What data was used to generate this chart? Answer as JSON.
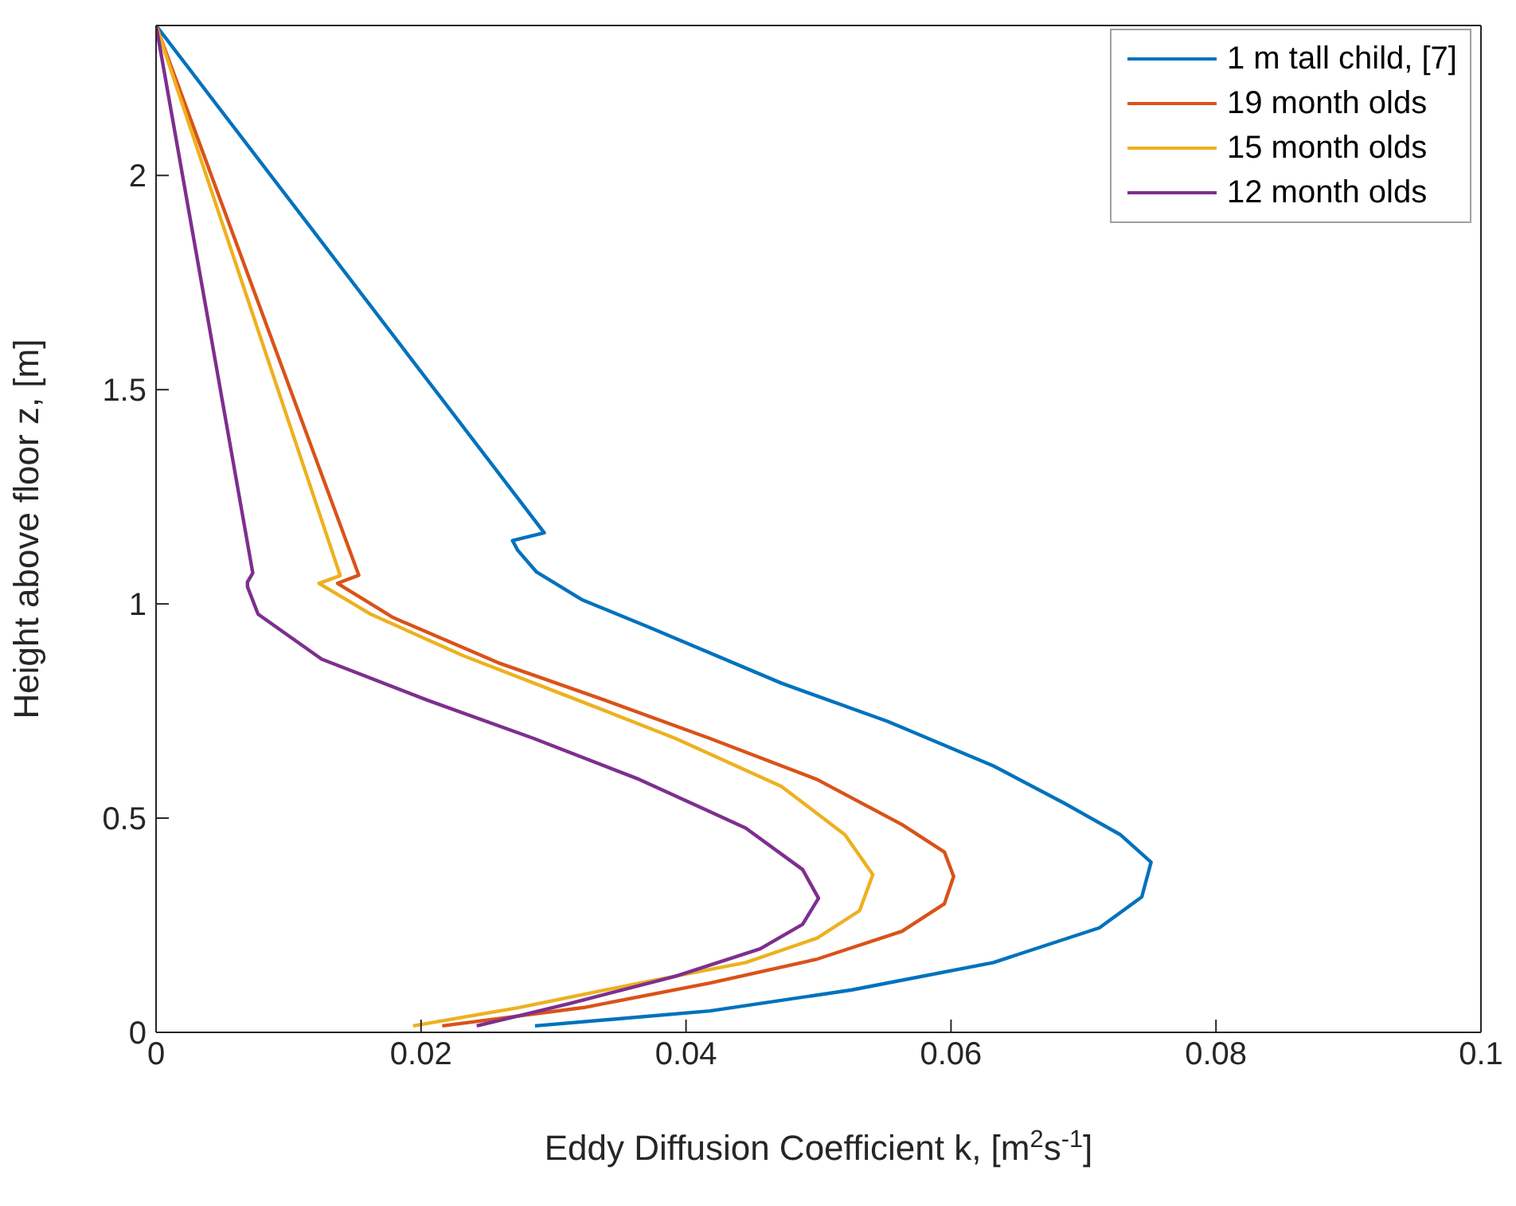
{
  "chart_data": {
    "type": "line",
    "xlabel": "Eddy Diffusion Coefficient k, [m$^{2}$s$^{-1}$]",
    "ylabel": "Height above floor z, [m]",
    "xlim": [
      0,
      0.1
    ],
    "xticks": [
      0,
      0.02,
      0.04,
      0.06,
      0.08,
      {
        "value": 0.1,
        "label": "0.1"
      }
    ],
    "ylim": [
      0,
      2.35
    ],
    "yticks": [
      0,
      0.5,
      1,
      1.5,
      2
    ],
    "grid": false,
    "legend": "top right",
    "marker": "none",
    "line_style": "solid",
    "series": [
      {
        "name": "1 m tall child, [7]",
        "color": "#0072bd",
        "x": [
          0,
          0.0293,
          0.0269,
          0.0273,
          0.0287,
          0.0322,
          0.0374,
          0.0472,
          0.0552,
          0.0632,
          0.0686,
          0.0728,
          0.0751,
          0.0744,
          0.0712,
          0.0632,
          0.0525,
          0.0418,
          0.0286
        ],
        "values": [
          2.35,
          1.166,
          1.148,
          1.125,
          1.075,
          1.009,
          0.943,
          0.815,
          0.726,
          0.622,
          0.534,
          0.461,
          0.397,
          0.316,
          0.244,
          0.163,
          0.099,
          0.05,
          0.015
        ]
      },
      {
        "name": "19 month olds",
        "color": "#d95319",
        "x": [
          0,
          0.0153,
          0.0137,
          0.0179,
          0.0258,
          0.0339,
          0.0418,
          0.0499,
          0.0563,
          0.0595,
          0.0602,
          0.0595,
          0.0563,
          0.0499,
          0.0418,
          0.0323,
          0.0216
        ],
        "values": [
          2.35,
          1.067,
          1.048,
          0.968,
          0.863,
          0.775,
          0.686,
          0.59,
          0.485,
          0.421,
          0.364,
          0.3,
          0.236,
          0.171,
          0.115,
          0.058,
          0.015
        ]
      },
      {
        "name": "15 month olds",
        "color": "#edb120",
        "x": [
          0,
          0.0139,
          0.0123,
          0.0162,
          0.0232,
          0.0312,
          0.0392,
          0.0472,
          0.052,
          0.0541,
          0.0531,
          0.0499,
          0.0445,
          0.0365,
          0.0274,
          0.0194
        ],
        "values": [
          2.35,
          1.066,
          1.048,
          0.976,
          0.879,
          0.783,
          0.686,
          0.574,
          0.461,
          0.368,
          0.284,
          0.22,
          0.163,
          0.115,
          0.058,
          0.015
        ]
      },
      {
        "name": "12 month olds",
        "color": "#7e2f8e",
        "x": [
          0,
          0.0073,
          0.0069,
          0.0069,
          0.0077,
          0.0125,
          0.0205,
          0.0285,
          0.0365,
          0.0445,
          0.0488,
          0.05,
          0.0488,
          0.0456,
          0.0392,
          0.0312,
          0.0242
        ],
        "values": [
          2.35,
          1.072,
          1.051,
          1.04,
          0.976,
          0.871,
          0.775,
          0.686,
          0.59,
          0.477,
          0.38,
          0.313,
          0.252,
          0.195,
          0.131,
          0.067,
          0.015
        ]
      }
    ]
  }
}
